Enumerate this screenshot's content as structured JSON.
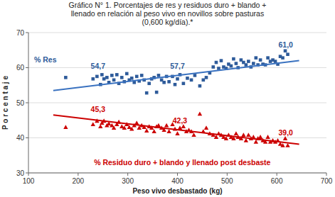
{
  "chart_data": {
    "type": "scatter",
    "title": "Gráfico N° 1. Porcentajes de res y residuos duro + blando +\nllenado en relación al peso vivo en novillos sobre pasturas\n(0,600 kg/día).*",
    "x_label": "Peso vivo desbastado (kg)",
    "y_label": "P o r c e n t a j e",
    "xlim": [
      100,
      700
    ],
    "ylim": [
      30,
      70
    ],
    "xticks": [
      100,
      200,
      300,
      400,
      500,
      600,
      700
    ],
    "yticks": [
      30,
      40,
      50,
      60,
      70
    ],
    "grid": true,
    "series": [
      {
        "name": "% Res",
        "type": "scatter",
        "marker": "square",
        "color": "#2E5B9A",
        "x": [
          175,
          230,
          238,
          245,
          248,
          252,
          258,
          262,
          268,
          272,
          278,
          282,
          288,
          293,
          298,
          303,
          308,
          313,
          318,
          323,
          328,
          333,
          338,
          343,
          348,
          353,
          358,
          362,
          368,
          373,
          378,
          383,
          390,
          395,
          400,
          405,
          412,
          420,
          428,
          435,
          445,
          452,
          458,
          465,
          472,
          478,
          483,
          488,
          493,
          498,
          503,
          508,
          513,
          518,
          522,
          528,
          533,
          538,
          543,
          548,
          553,
          558,
          562,
          567,
          572,
          577,
          582,
          587,
          592,
          597,
          602,
          607,
          612,
          617,
          622
        ],
        "values": [
          57.2,
          56.8,
          57.5,
          55.2,
          58.0,
          56.8,
          57.2,
          55.8,
          57.8,
          56.5,
          58.0,
          55.5,
          57.2,
          56.0,
          58.3,
          56.5,
          57.0,
          55.8,
          57.5,
          56.2,
          57.8,
          56.5,
          52.8,
          55.5,
          56.8,
          57.2,
          53.0,
          57.8,
          56.5,
          55.8,
          57.5,
          56.0,
          57.5,
          55.2,
          56.8,
          58.0,
          55.5,
          57.0,
          56.5,
          57.8,
          54.8,
          56.5,
          57.2,
          58.5,
          60.2,
          61.5,
          59.8,
          62.0,
          60.2,
          59.8,
          61.0,
          60.5,
          62.5,
          61.2,
          60.0,
          62.2,
          61.5,
          60.8,
          61.8,
          60.2,
          61.2,
          62.8,
          60.8,
          62.2,
          61.0,
          60.8,
          62.8,
          61.8,
          62.2,
          61.8,
          61.0,
          63.2,
          62.8,
          64.8,
          63.8
        ]
      },
      {
        "name": "% Residuo duro + blando y llenado post desbaste",
        "type": "scatter",
        "marker": "triangle",
        "color": "#CC0000",
        "x": [
          175,
          230,
          238,
          245,
          248,
          252,
          258,
          262,
          268,
          272,
          278,
          282,
          288,
          293,
          298,
          303,
          308,
          313,
          318,
          323,
          328,
          333,
          338,
          343,
          348,
          353,
          358,
          362,
          368,
          373,
          378,
          383,
          390,
          395,
          400,
          405,
          412,
          418,
          423,
          428,
          433,
          445,
          452,
          458,
          465,
          472,
          478,
          483,
          488,
          493,
          498,
          503,
          508,
          513,
          518,
          522,
          528,
          533,
          538,
          543,
          548,
          553,
          558,
          562,
          567,
          572,
          577,
          582,
          587,
          592,
          597,
          602,
          607,
          612,
          617,
          622
        ],
        "values": [
          43.0,
          43.8,
          44.8,
          43.2,
          44.2,
          44.8,
          43.5,
          44.0,
          43.5,
          42.8,
          43.8,
          44.5,
          43.2,
          42.8,
          43.8,
          43.0,
          42.5,
          43.5,
          44.2,
          42.8,
          43.5,
          43.0,
          42.0,
          43.2,
          42.8,
          41.8,
          43.2,
          43.5,
          42.8,
          42.2,
          43.5,
          41.8,
          43.8,
          42.5,
          41.2,
          42.8,
          43.2,
          41.8,
          42.2,
          41.8,
          40.8,
          46.8,
          41.8,
          42.8,
          41.2,
          40.8,
          40.2,
          41.2,
          40.8,
          40.2,
          39.8,
          40.8,
          40.2,
          39.8,
          41.2,
          40.2,
          39.8,
          40.8,
          39.2,
          40.8,
          39.8,
          40.2,
          38.8,
          39.8,
          40.2,
          39.2,
          38.8,
          40.2,
          38.8,
          39.2,
          38.8,
          39.2,
          38.2,
          37.8,
          39.8,
          37.8
        ]
      },
      {
        "type": "line",
        "color": "#3A72C0",
        "x": [
          150,
          645
        ],
        "values": [
          53.5,
          62.0
        ]
      },
      {
        "type": "line",
        "color": "#CC0000",
        "x": [
          150,
          645
        ],
        "values": [
          46.5,
          38.2
        ]
      }
    ],
    "annotations": [
      {
        "text": "54,7",
        "x": 240,
        "y": 59.5,
        "color": "#2E5B9A"
      },
      {
        "text": "57,7",
        "x": 400,
        "y": 59.5,
        "color": "#2E5B9A"
      },
      {
        "text": "61,0",
        "x": 618,
        "y": 65.5,
        "color": "#2E5B9A"
      },
      {
        "text": "45,3",
        "x": 240,
        "y": 47.2,
        "color": "#CC0000"
      },
      {
        "text": "42,3",
        "x": 405,
        "y": 44.0,
        "color": "#CC0000"
      },
      {
        "text": "39,0",
        "x": 618,
        "y": 40.5,
        "color": "#CC0000"
      }
    ]
  }
}
